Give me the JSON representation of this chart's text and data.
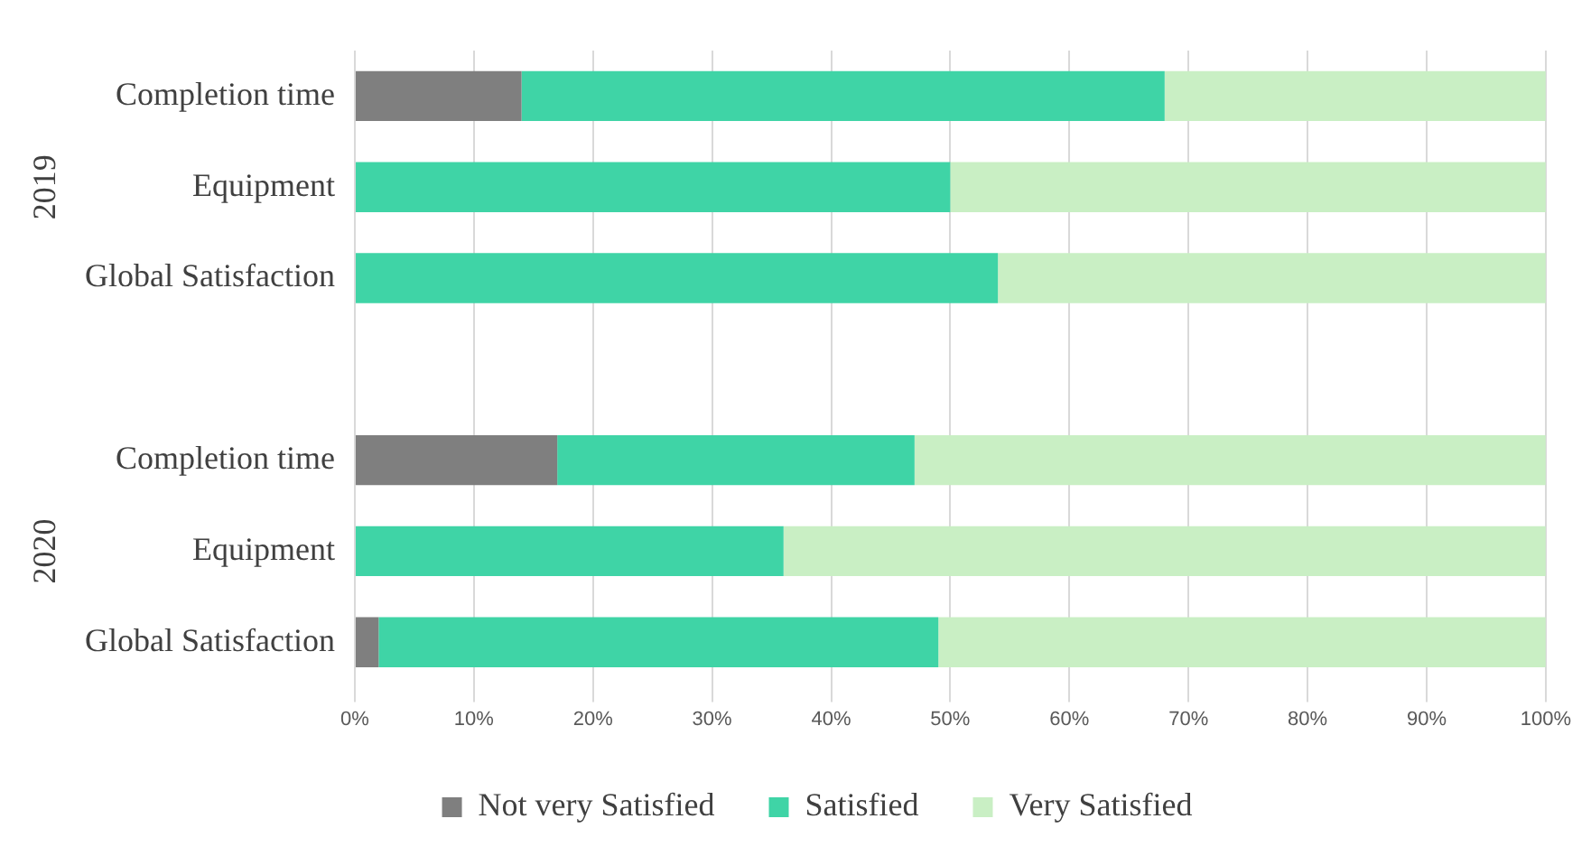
{
  "chart_data": {
    "type": "bar",
    "orientation": "horizontal",
    "stacked": true,
    "categories": [
      "Completion time",
      "Equipment",
      "Global Satisfaction",
      null,
      "Completion time",
      "Equipment",
      "Global Satisfaction"
    ],
    "series": [
      {
        "name": "Not very Satisfied",
        "color": "#7f7f7f",
        "values": [
          14,
          0,
          0,
          null,
          17,
          0,
          2
        ]
      },
      {
        "name": "Satisfied",
        "color": "#3fd4a6",
        "values": [
          54,
          50,
          54,
          null,
          30,
          36,
          47
        ]
      },
      {
        "name": "Very Satisfied",
        "color": "#c9efc4",
        "values": [
          32,
          50,
          46,
          null,
          53,
          64,
          51
        ]
      }
    ],
    "xlim": [
      0,
      100
    ],
    "xticks": [
      {
        "value": 0,
        "label": "0%"
      },
      {
        "value": 10,
        "label": "10%"
      },
      {
        "value": 20,
        "label": "20%"
      },
      {
        "value": 30,
        "label": "30%"
      },
      {
        "value": 40,
        "label": "40%"
      },
      {
        "value": 50,
        "label": "50%"
      },
      {
        "value": 60,
        "label": "60%"
      },
      {
        "value": 70,
        "label": "70%"
      },
      {
        "value": 80,
        "label": "80%"
      },
      {
        "value": 90,
        "label": "90%"
      },
      {
        "value": 100,
        "label": "100%"
      }
    ],
    "grid": "x",
    "legend": "bottom",
    "annotations": [
      "2019",
      "2020"
    ]
  }
}
